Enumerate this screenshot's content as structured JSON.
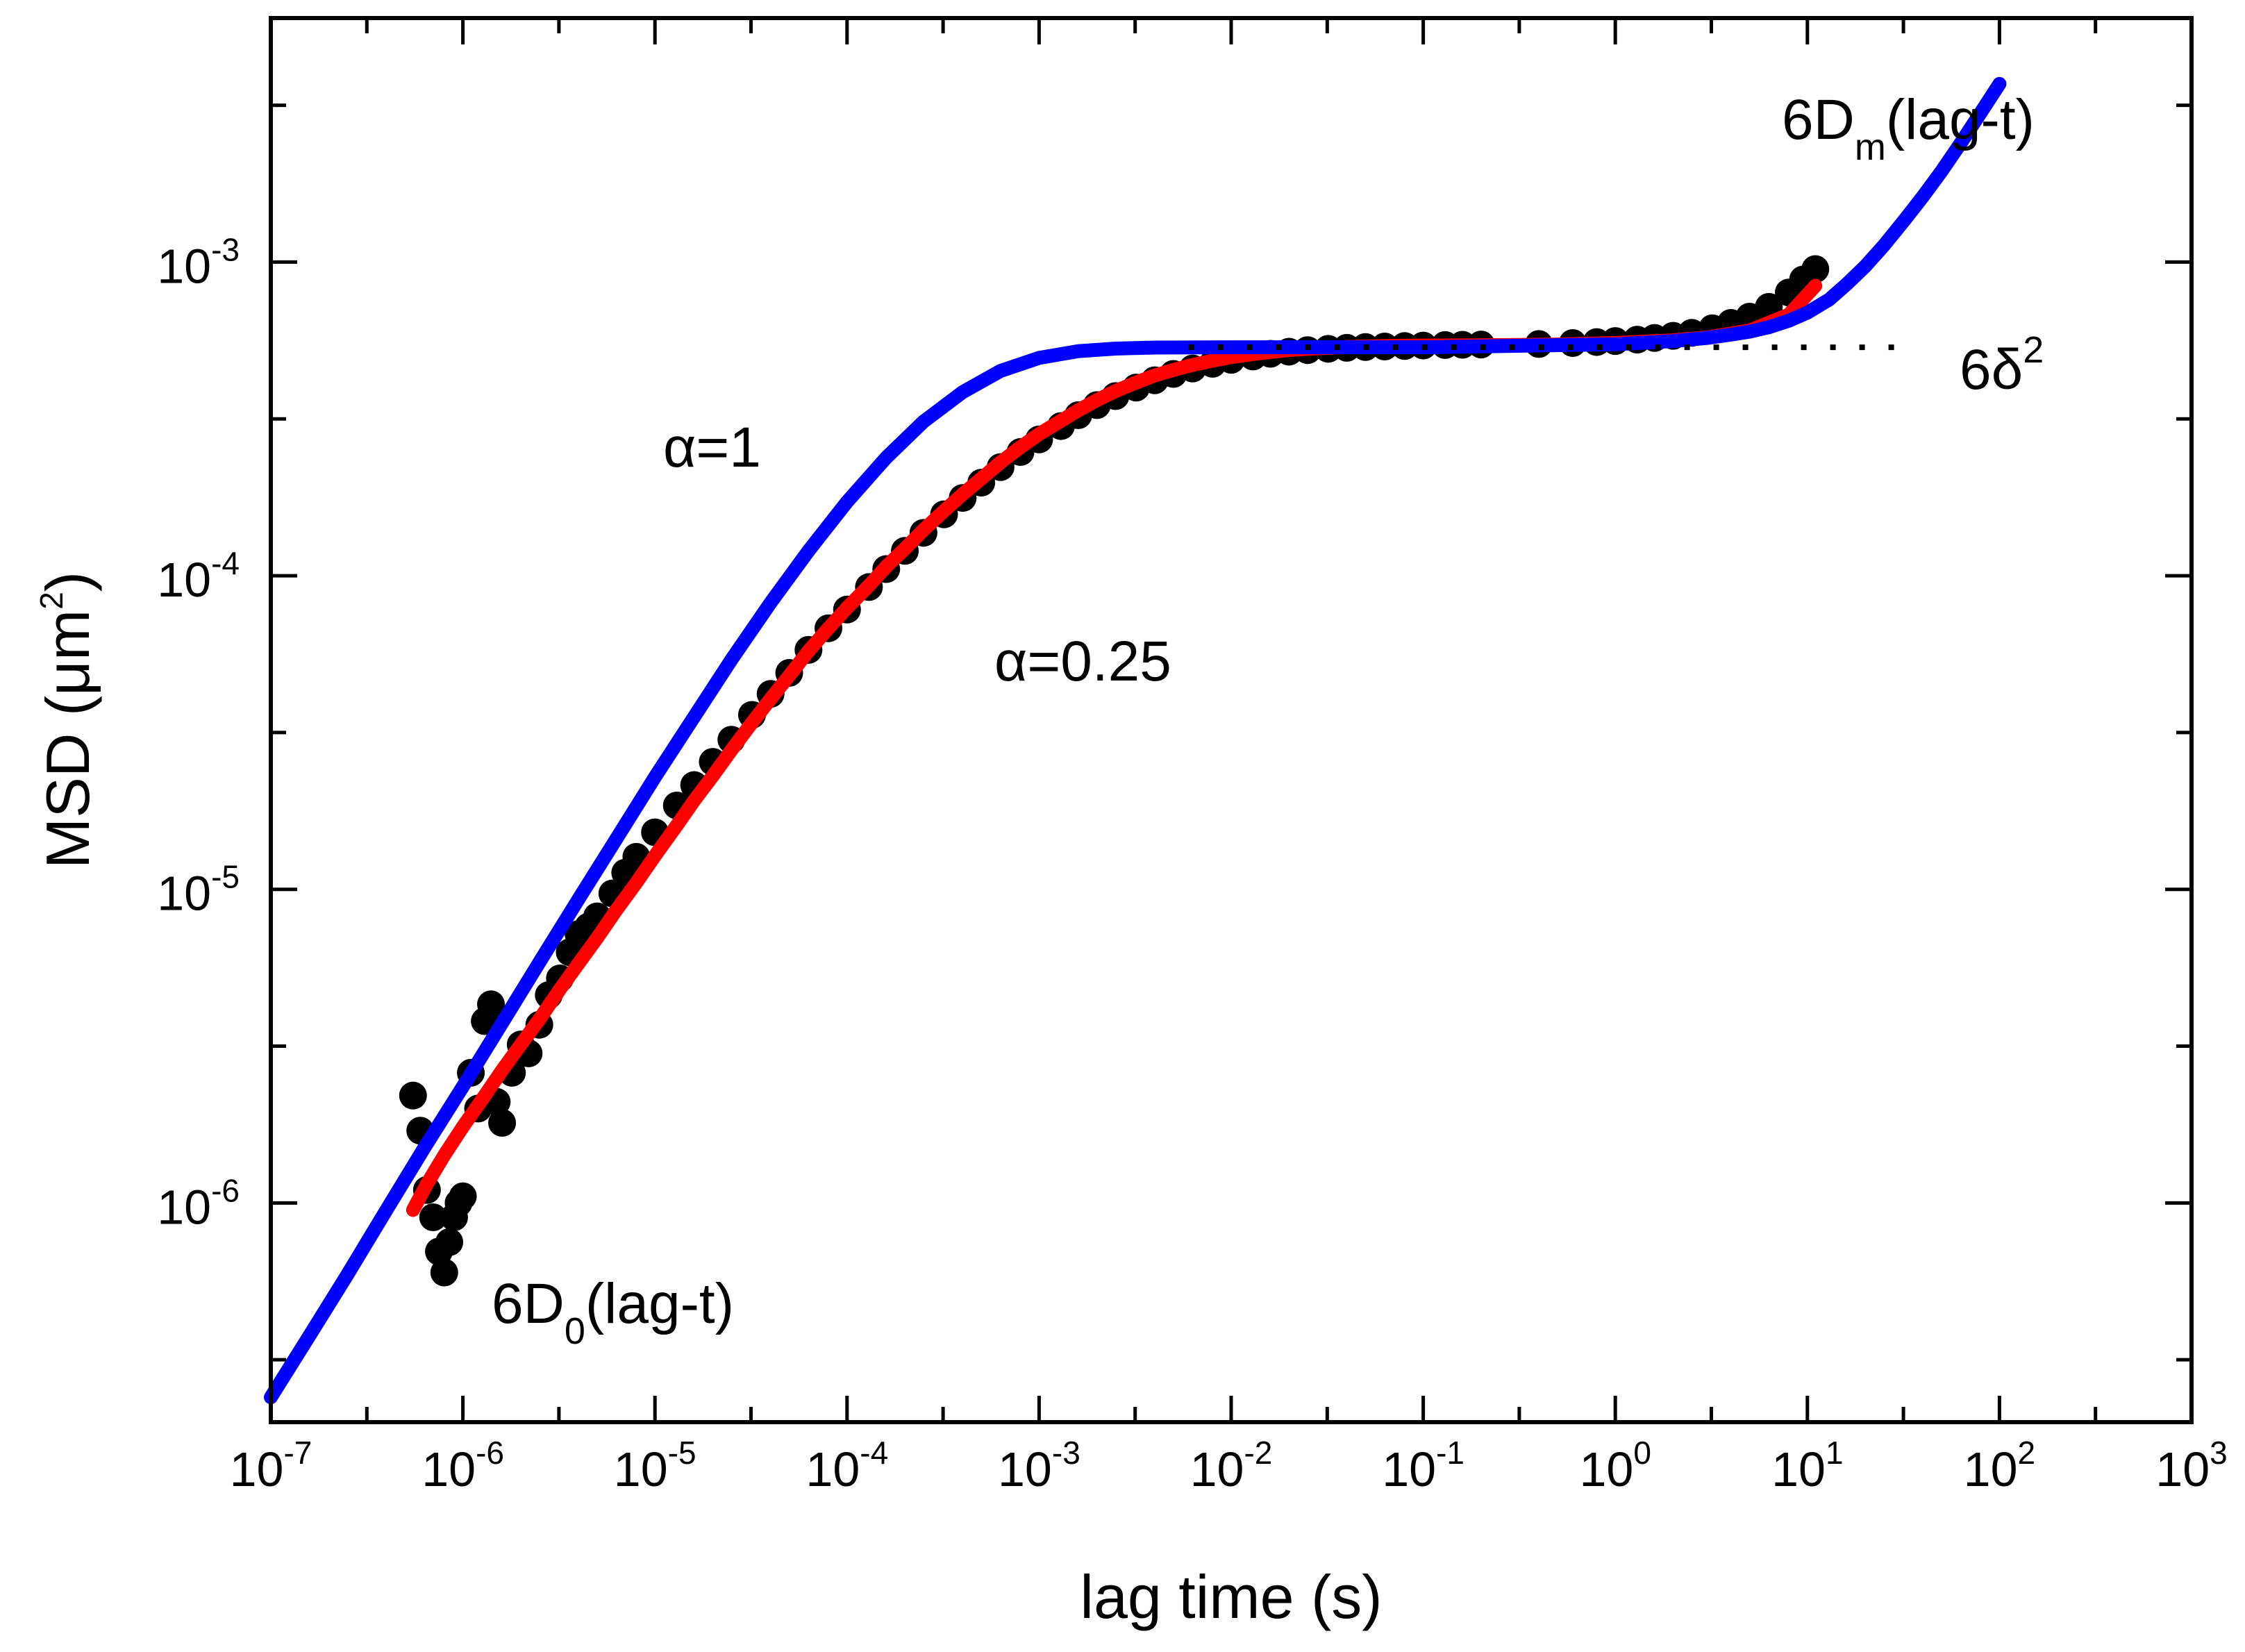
{
  "chart_data": {
    "type": "scatter",
    "xlabel": "lag time (s)",
    "ylabel": {
      "main": "MSD (",
      "unit_mu": "μ",
      "unit_m": "m",
      "unit_sup": "2",
      "close": ")"
    },
    "xscale": "log",
    "yscale": "log",
    "xlim": [
      1e-07,
      1000
    ],
    "ylim": [
      2e-07,
      0.006
    ],
    "grid": false,
    "x_ticks": [
      {
        "base": "10",
        "exp": "-7",
        "value": 1e-07
      },
      {
        "base": "10",
        "exp": "-6",
        "value": 1e-06
      },
      {
        "base": "10",
        "exp": "-5",
        "value": 1e-05
      },
      {
        "base": "10",
        "exp": "-4",
        "value": 0.0001
      },
      {
        "base": "10",
        "exp": "-3",
        "value": 0.001
      },
      {
        "base": "10",
        "exp": "-2",
        "value": 0.01
      },
      {
        "base": "10",
        "exp": "-1",
        "value": 0.1
      },
      {
        "base": "10",
        "exp": "0",
        "value": 1
      },
      {
        "base": "10",
        "exp": "1",
        "value": 10
      },
      {
        "base": "10",
        "exp": "2",
        "value": 100
      },
      {
        "base": "10",
        "exp": "3",
        "value": 1000
      }
    ],
    "y_ticks": [
      {
        "base": "10",
        "exp": "-6",
        "value": 1e-06
      },
      {
        "base": "10",
        "exp": "-5",
        "value": 1e-05
      },
      {
        "base": "10",
        "exp": "-4",
        "value": 0.0001
      },
      {
        "base": "10",
        "exp": "-3",
        "value": 0.001
      }
    ],
    "series": [
      {
        "kind": "scatter",
        "color": "#000000",
        "x": [
          5.5e-07,
          6e-07,
          6.5e-07,
          7e-07,
          7.5e-07,
          8e-07,
          8.5e-07,
          9e-07,
          9.5e-07,
          1e-06,
          1.1e-06,
          1.2e-06,
          1.3e-06,
          1.4e-06,
          1.5e-06,
          1.6e-06,
          1.8e-06,
          2e-06,
          2.2e-06,
          2.5e-06,
          2.8e-06,
          3.2e-06,
          3.6e-06,
          4e-06,
          4.5e-06,
          5e-06,
          6e-06,
          7e-06,
          8e-06,
          1e-05,
          1.3e-05,
          1.6e-05,
          2e-05,
          2.5e-05,
          3.2e-05,
          4e-05,
          5e-05,
          6.3e-05,
          8e-05,
          0.0001,
          0.00013,
          0.00016,
          0.0002,
          0.00025,
          0.00032,
          0.0004,
          0.0005,
          0.00063,
          0.0008,
          0.001,
          0.0013,
          0.0016,
          0.002,
          0.0025,
          0.0032,
          0.004,
          0.005,
          0.0063,
          0.008,
          0.01,
          0.013,
          0.016,
          0.02,
          0.025,
          0.032,
          0.04,
          0.05,
          0.063,
          0.08,
          0.1,
          0.13,
          0.16,
          0.2,
          0.4,
          0.6,
          0.8,
          1,
          1.3,
          1.6,
          2,
          2.5,
          3.2,
          4,
          5,
          6.3,
          8,
          9.5,
          11
        ],
        "y": [
          2.2e-06,
          1.7e-06,
          1.1e-06,
          9e-07,
          7e-07,
          6e-07,
          7.5e-07,
          9e-07,
          1e-06,
          1.05e-06,
          2.6e-06,
          2e-06,
          3.8e-06,
          4.3e-06,
          2.1e-06,
          1.8e-06,
          2.6e-06,
          3.2e-06,
          3e-06,
          3.7e-06,
          4.6e-06,
          5.2e-06,
          6.3e-06,
          7.2e-06,
          7.6e-06,
          8.2e-06,
          9.7e-06,
          1.13e-05,
          1.27e-05,
          1.52e-05,
          1.85e-05,
          2.15e-05,
          2.55e-05,
          3e-05,
          3.6e-05,
          4.2e-05,
          4.9e-05,
          5.8e-05,
          6.8e-05,
          7.8e-05,
          9.2e-05,
          0.000105,
          0.00012,
          0.000137,
          0.000157,
          0.000177,
          0.000198,
          0.000222,
          0.000248,
          0.000272,
          0.0003,
          0.000325,
          0.00035,
          0.000374,
          0.000398,
          0.00042,
          0.00044,
          0.000458,
          0.000474,
          0.000488,
          0.0005,
          0.00051,
          0.000518,
          0.000524,
          0.000529,
          0.000533,
          0.000536,
          0.000538,
          0.00054,
          0.000542,
          0.000544,
          0.000545,
          0.000546,
          0.000548,
          0.000552,
          0.000556,
          0.00056,
          0.000566,
          0.000573,
          0.000582,
          0.000595,
          0.000615,
          0.00064,
          0.00067,
          0.00072,
          0.0008,
          0.00088,
          0.00095
        ]
      },
      {
        "kind": "line",
        "color": "#ff0000",
        "x": [
          5.5e-07,
          6.5e-07,
          8e-07,
          1e-06,
          1.3e-06,
          1.6e-06,
          2e-06,
          2.5e-06,
          3.2e-06,
          4e-06,
          5e-06,
          6.3e-06,
          8e-06,
          1e-05,
          1.3e-05,
          1.6e-05,
          2e-05,
          2.5e-05,
          3.2e-05,
          4e-05,
          5e-05,
          6.3e-05,
          8e-05,
          0.0001,
          0.00013,
          0.00016,
          0.0002,
          0.00025,
          0.00032,
          0.0004,
          0.0005,
          0.00063,
          0.0008,
          0.001,
          0.0013,
          0.0016,
          0.002,
          0.0025,
          0.0032,
          0.004,
          0.005,
          0.0063,
          0.008,
          0.01,
          0.013,
          0.016,
          0.02,
          0.025,
          0.032,
          0.04,
          0.05,
          0.063,
          0.08,
          0.1,
          0.2,
          0.5,
          1,
          2,
          3,
          5,
          8,
          11
        ],
        "y": [
          9.5e-07,
          1.15e-06,
          1.42e-06,
          1.75e-06,
          2.2e-06,
          2.65e-06,
          3.2e-06,
          3.85e-06,
          4.8e-06,
          5.8e-06,
          7e-06,
          8.6e-06,
          1.05e-05,
          1.28e-05,
          1.6e-05,
          1.92e-05,
          2.3e-05,
          2.78e-05,
          3.4e-05,
          4.05e-05,
          4.8e-05,
          5.75e-05,
          6.8e-05,
          7.9e-05,
          9.3e-05,
          0.000107,
          0.000122,
          0.00014,
          0.000161,
          0.000182,
          0.000204,
          0.00023,
          0.000257,
          0.000283,
          0.000312,
          0.000337,
          0.000363,
          0.000388,
          0.000413,
          0.000435,
          0.000453,
          0.00047,
          0.000485,
          0.000498,
          0.000509,
          0.000517,
          0.000524,
          0.000529,
          0.000533,
          0.000536,
          0.000538,
          0.00054,
          0.000541,
          0.000542,
          0.000543,
          0.000546,
          0.000552,
          0.000563,
          0.000575,
          0.000605,
          0.00068,
          0.00084
        ]
      },
      {
        "kind": "line",
        "color": "#0000ff",
        "x": [
          1e-07,
          1.6e-07,
          2.5e-07,
          4e-07,
          6.3e-07,
          1e-06,
          1.6e-06,
          2.5e-06,
          4e-06,
          6.3e-06,
          1e-05,
          1.6e-05,
          2.5e-05,
          4e-05,
          6.3e-05,
          0.0001,
          0.00016,
          0.00025,
          0.0004,
          0.00063,
          0.001,
          0.0016,
          0.0025,
          0.004,
          0.01,
          0.1,
          1,
          2,
          3,
          4,
          5,
          6.3,
          8,
          10,
          13,
          16,
          20,
          25,
          32,
          40,
          50,
          63,
          80,
          100
        ],
        "y": [
          2.4e-07,
          3.8e-07,
          5.9e-07,
          9.5e-07,
          1.5e-06,
          2.35e-06,
          3.75e-06,
          5.85e-06,
          9.3e-06,
          1.45e-05,
          2.28e-05,
          3.55e-05,
          5.4e-05,
          8.2e-05,
          0.00012,
          0.000172,
          0.000238,
          0.00031,
          0.000385,
          0.00045,
          0.000495,
          0.00052,
          0.00053,
          0.000534,
          0.000535,
          0.000535,
          0.000547,
          0.00056,
          0.000573,
          0.000587,
          0.0006,
          0.00062,
          0.00065,
          0.00069,
          0.00076,
          0.00085,
          0.00097,
          0.00113,
          0.00136,
          0.00162,
          0.00195,
          0.0024,
          0.003,
          0.0037
        ]
      },
      {
        "kind": "dotted-line",
        "color": "#000000",
        "x": [
          0.006,
          30
        ],
        "y": [
          0.000535,
          0.000535
        ]
      }
    ],
    "annotations": {
      "alpha_1": {
        "symbol": "α",
        "text": "=1"
      },
      "alpha_025": {
        "symbol": "α",
        "text": "=0.25"
      },
      "six_delta_sq": {
        "base": "6",
        "symbol": "δ",
        "sup": "2"
      },
      "six_dm": {
        "pre": "6D",
        "sub": "m",
        "post": "(lag-t)"
      },
      "six_d0": {
        "pre": "6D",
        "sub": "0",
        "post": "(lag-t)"
      }
    }
  }
}
